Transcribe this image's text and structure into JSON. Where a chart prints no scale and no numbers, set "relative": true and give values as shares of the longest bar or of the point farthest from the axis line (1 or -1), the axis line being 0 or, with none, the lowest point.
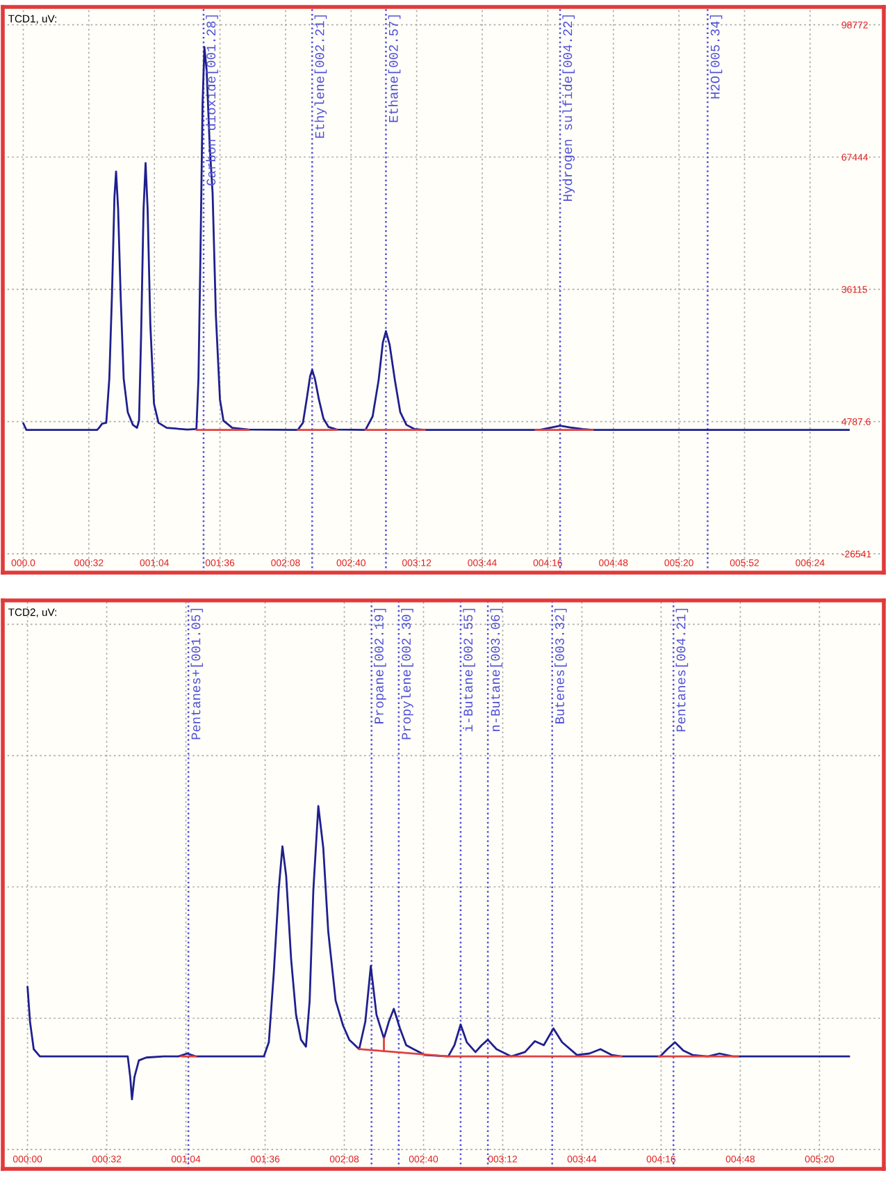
{
  "chart_data": [
    {
      "type": "line",
      "title": "TCD1, uV:",
      "series": [
        {
          "color": "#1f1f8f",
          "x": [
            0,
            1.5,
            36,
            37,
            38.5,
            40.5,
            42,
            43.3,
            44.5,
            45.3,
            46.3,
            47.5,
            49,
            51,
            53.5,
            55.5,
            56.5,
            57.5,
            58.7,
            59.7,
            60.7,
            62,
            63.8,
            66,
            70,
            80,
            84.5,
            85.5,
            86.5,
            87.5,
            88.4,
            89.5,
            91,
            92.4,
            94,
            96,
            97.7,
            102,
            110,
            134,
            136.5,
            138.3,
            140,
            141,
            142.3,
            144.3,
            146.5,
            149,
            153,
            167,
            170.5,
            173.4,
            175.5,
            177,
            178.8,
            181.4,
            184,
            187,
            191,
            196,
            252,
            257,
            262,
            267,
            273,
            278,
            403
          ],
          "values": [
            4400,
            2800,
            2800,
            3300,
            4300,
            4500,
            15000,
            35000,
            58000,
            64000,
            55000,
            35000,
            15000,
            7000,
            4000,
            3300,
            5000,
            25000,
            55000,
            66000,
            55000,
            28000,
            9000,
            4500,
            3300,
            2900,
            3000,
            15000,
            45000,
            80000,
            93500,
            88000,
            70000,
            59000,
            30000,
            10000,
            5000,
            3300,
            2900,
            2800,
            4500,
            10000,
            15500,
            17000,
            15000,
            10000,
            5500,
            3500,
            2900,
            2800,
            6000,
            14500,
            23500,
            26200,
            23000,
            14500,
            7000,
            4000,
            3000,
            2800,
            2800,
            3300,
            3800,
            3400,
            3000,
            2800,
            2800
          ]
        },
        {
          "color": "#e04040",
          "x": [
            84.5,
            110
          ],
          "values": [
            2800,
            2800
          ]
        },
        {
          "color": "#e04040",
          "x": [
            134,
            153
          ],
          "values": [
            2800,
            2800
          ]
        },
        {
          "color": "#e04040",
          "x": [
            167,
            196
          ],
          "values": [
            2800,
            2800
          ]
        },
        {
          "color": "#e04040",
          "x": [
            250,
            278
          ],
          "values": [
            2800,
            2800
          ]
        }
      ],
      "xlim": [
        -10,
        420
      ],
      "xticks": [
        {
          "value": 0,
          "label": "000.0"
        },
        {
          "value": 32,
          "label": "000:32"
        },
        {
          "value": 64,
          "label": "001:04"
        },
        {
          "value": 96,
          "label": "001:36"
        },
        {
          "value": 128,
          "label": "002:08"
        },
        {
          "value": 160,
          "label": "002:40"
        },
        {
          "value": 192,
          "label": "003:12"
        },
        {
          "value": 224,
          "label": "003:44"
        },
        {
          "value": 256,
          "label": "004:16"
        },
        {
          "value": 288,
          "label": "004:48"
        },
        {
          "value": 320,
          "label": "005:20"
        },
        {
          "value": 352,
          "label": "005:52"
        },
        {
          "value": 384,
          "label": "006:24"
        }
      ],
      "ylim": [
        -31000,
        103000
      ],
      "yticks": [
        -26541,
        4787.6,
        36115,
        67444,
        98772
      ],
      "grid": true,
      "ref_lines": [
        {
          "axis": "x",
          "value": 88,
          "label": "Carbon dioxide[001.28]",
          "color": "#5050d8",
          "line_style": "dotted"
        },
        {
          "axis": "x",
          "value": 141,
          "label": "Ethylene[002.21]",
          "color": "#5050d8",
          "line_style": "dotted"
        },
        {
          "axis": "x",
          "value": 177,
          "label": "Ethane[002.57]",
          "color": "#5050d8",
          "line_style": "dotted"
        },
        {
          "axis": "x",
          "value": 262,
          "label": "Hydrogen sulfide[004.22]",
          "color": "#5050d8",
          "line_style": "dotted"
        },
        {
          "axis": "x",
          "value": 334,
          "label": "H2O[005.34]",
          "color": "#5050d8",
          "line_style": "dotted"
        }
      ]
    },
    {
      "type": "line",
      "title": "TCD2, uV:",
      "relative": true,
      "series": [
        {
          "color": "#1f1f8f",
          "x": [
            0,
            1,
            2.5,
            5,
            40.5,
            41.5,
            42.2,
            43.2,
            45,
            48,
            55,
            61,
            64.5,
            68,
            95.5,
            97.5,
            99.5,
            101.5,
            103,
            104.5,
            106.5,
            108.5,
            110.5,
            112.5,
            114,
            115.5,
            117.5,
            119.5,
            121.5,
            124.5,
            127.5,
            130,
            134,
            136.5,
            138.7,
            141,
            144,
            146,
            148,
            150.5,
            153,
            156,
            160.5,
            170,
            172.5,
            175,
            177.5,
            181,
            183.5,
            186,
            189.5,
            195.5,
            201,
            205,
            208.6,
            212.5,
            216,
            222,
            227,
            231.5,
            236,
            240,
            255.6,
            258.5,
            261.6,
            265,
            268.7,
            275,
            279.6,
            285,
            332
          ],
          "values": [
            0.502,
            0.406,
            0.33,
            0.31,
            0.31,
            0.253,
            0.192,
            0.253,
            0.299,
            0.307,
            0.31,
            0.31,
            0.318,
            0.31,
            0.31,
            0.349,
            0.54,
            0.77,
            0.889,
            0.808,
            0.579,
            0.425,
            0.356,
            0.337,
            0.464,
            0.77,
            1,
            0.885,
            0.655,
            0.464,
            0.395,
            0.356,
            0.33,
            0.406,
            0.559,
            0.425,
            0.36,
            0.406,
            0.441,
            0.387,
            0.341,
            0.33,
            0.314,
            0.31,
            0.341,
            0.398,
            0.349,
            0.322,
            0.341,
            0.356,
            0.33,
            0.31,
            0.322,
            0.352,
            0.341,
            0.387,
            0.349,
            0.314,
            0.318,
            0.33,
            0.314,
            0.31,
            0.31,
            0.33,
            0.349,
            0.326,
            0.314,
            0.31,
            0.318,
            0.31,
            0.31
          ]
        },
        {
          "color": "#e04040",
          "x": [
            62,
            68
          ],
          "values": [
            0.31,
            0.31
          ]
        },
        {
          "color": "#e04040",
          "x": [
            134,
            170,
            240
          ],
          "values": [
            0.33,
            0.31,
            0.31
          ]
        },
        {
          "color": "#e04040",
          "x": [
            255,
            287
          ],
          "values": [
            0.31,
            0.31
          ]
        },
        {
          "color": "#e04040",
          "x": [
            144,
            144
          ],
          "values": [
            0.36,
            0.324
          ]
        }
      ],
      "xlim": [
        -10,
        346
      ],
      "xticks": [
        {
          "value": 0,
          "label": "000:00"
        },
        {
          "value": 32,
          "label": "000:32"
        },
        {
          "value": 64,
          "label": "001:04"
        },
        {
          "value": 96,
          "label": "001:36"
        },
        {
          "value": 128,
          "label": "002:08"
        },
        {
          "value": 160,
          "label": "002:40"
        },
        {
          "value": 192,
          "label": "003:12"
        },
        {
          "value": 224,
          "label": "003:44"
        },
        {
          "value": 256,
          "label": "004:16"
        },
        {
          "value": 288,
          "label": "004:48"
        },
        {
          "value": 320,
          "label": "005:20"
        }
      ],
      "grid": true,
      "ref_lines": [
        {
          "axis": "x",
          "value": 65,
          "label": "Pentanes+[001.05]",
          "color": "#5050d8",
          "line_style": "dotted"
        },
        {
          "axis": "x",
          "value": 139,
          "label": "Propane[002.19]",
          "color": "#5050d8",
          "line_style": "dotted"
        },
        {
          "axis": "x",
          "value": 150,
          "label": "Propylene[002.30]",
          "color": "#5050d8",
          "line_style": "dotted"
        },
        {
          "axis": "x",
          "value": 175,
          "label": "i-Butane[002.55]",
          "color": "#5050d8",
          "line_style": "dotted"
        },
        {
          "axis": "x",
          "value": 186,
          "label": "n-Butane[003.06]",
          "color": "#5050d8",
          "line_style": "dotted"
        },
        {
          "axis": "x",
          "value": 212,
          "label": "Butenes[003.32]",
          "color": "#5050d8",
          "line_style": "dotted"
        },
        {
          "axis": "x",
          "value": 261,
          "label": "Pentanes[004.21]",
          "color": "#5050d8",
          "line_style": "dotted"
        }
      ]
    }
  ]
}
